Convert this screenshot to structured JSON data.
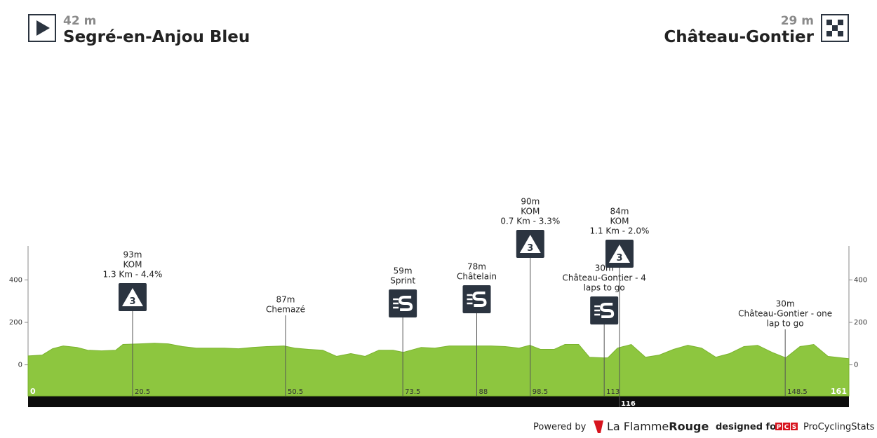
{
  "header": {
    "start": {
      "elevation": "42 m",
      "name": "Segré-en-Anjou Bleu"
    },
    "finish": {
      "elevation": "29 m",
      "name": "Château-Gontier"
    }
  },
  "chart_data": {
    "type": "area",
    "color": "#8dc63f",
    "x": [
      0,
      2.8,
      4.8,
      6.9,
      9.6,
      11.7,
      14.4,
      17.2,
      18.6,
      22.0,
      24.8,
      27.5,
      30.3,
      33.0,
      35.8,
      38.5,
      41.3,
      44.0,
      46.8,
      50.2,
      52.3,
      55.0,
      57.8,
      60.5,
      63.3,
      66.1,
      68.8,
      71.6,
      73.6,
      77.1,
      79.8,
      82.6,
      85.3,
      88.1,
      90.8,
      93.6,
      96.3,
      98.4,
      100.5,
      103.2,
      105.3,
      108.0,
      110.1,
      112.8,
      113.7,
      115.6,
      118.3,
      121.1,
      123.8,
      126.6,
      129.4,
      132.1,
      134.9,
      137.6,
      140.4,
      143.1,
      145.9,
      148.6,
      151.4,
      154.1,
      156.9,
      161
    ],
    "values": [
      42,
      46,
      76,
      89,
      82,
      69,
      66,
      69,
      96,
      99,
      102,
      99,
      86,
      79,
      79,
      79,
      76,
      82,
      86,
      89,
      79,
      73,
      69,
      40,
      53,
      40,
      69,
      69,
      59,
      82,
      79,
      89,
      89,
      89,
      89,
      86,
      79,
      92,
      73,
      73,
      96,
      96,
      36,
      33,
      33,
      79,
      96,
      36,
      46,
      73,
      92,
      79,
      36,
      53,
      86,
      92,
      59,
      33,
      86,
      96,
      40,
      29
    ],
    "xlim": [
      0,
      161
    ],
    "ylim": [
      -150,
      560
    ],
    "yticks": [
      0,
      200,
      400
    ],
    "markers": [
      {
        "km": 20.5,
        "lines": [
          "93m",
          "KOM",
          "1.3 Km - 4.4%"
        ],
        "icon": "kom",
        "category": "3"
      },
      {
        "km": 50.5,
        "lines": [
          "87m",
          "Chemazé"
        ]
      },
      {
        "km": 73.5,
        "lines": [
          "59m",
          "Sprint"
        ],
        "icon": "sprint"
      },
      {
        "km": 88,
        "lines": [
          "78m",
          "Châtelain"
        ],
        "icon": "sprint"
      },
      {
        "km": 98.5,
        "lines": [
          "90m",
          "KOM",
          "0.7 Km - 3.3%"
        ],
        "icon": "kom",
        "category": "3"
      },
      {
        "km": 113,
        "lines": [
          "30m",
          "Château-Gontier - 4",
          "laps to go"
        ],
        "icon": "sprint"
      },
      {
        "km": 116,
        "lines": [
          "84m",
          "KOM",
          "1.1 Km - 2.0%"
        ],
        "icon": "kom",
        "category": "3"
      },
      {
        "km": 148.5,
        "lines": [
          "30m",
          "Château-Gontier - one",
          "lap to go"
        ]
      }
    ]
  },
  "footer": {
    "powered": "Powered by",
    "brand_a": "La Flamme",
    "brand_b": "Rouge",
    "designed": "designed for",
    "pcs": [
      "P",
      "C",
      "S"
    ],
    "site": "ProCyclingStats"
  }
}
